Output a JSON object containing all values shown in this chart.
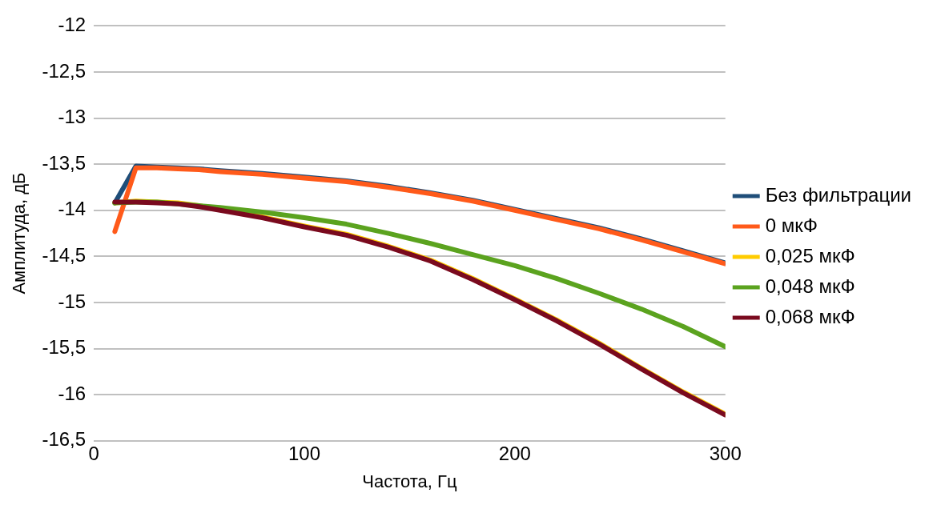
{
  "chart_data": {
    "type": "line",
    "xlabel": "Частота, Гц",
    "ylabel": "Амплитуда, дБ",
    "x": [
      10,
      20,
      30,
      40,
      50,
      60,
      80,
      100,
      120,
      140,
      160,
      180,
      200,
      220,
      240,
      260,
      280,
      300
    ],
    "xlim": [
      0,
      300
    ],
    "xticks": [
      0,
      100,
      200,
      300
    ],
    "ylim": [
      -16.5,
      -12
    ],
    "yticks": [
      {
        "value": -16.5,
        "label": "-16,5"
      },
      -16,
      {
        "value": -15.5,
        "label": "-15,5"
      },
      -15,
      {
        "value": -14.5,
        "label": "-14,5"
      },
      -14,
      {
        "value": -13.5,
        "label": "-13,5"
      },
      -13,
      {
        "value": -12.5,
        "label": "-12,5"
      },
      -12
    ],
    "grid": "y",
    "legend": "right",
    "marker": "none",
    "line_style": "solid",
    "series": [
      {
        "name": "Без фильтрации",
        "color": "#1f4e79",
        "values": [
          -13.92,
          -13.52,
          -13.53,
          -13.54,
          -13.55,
          -13.57,
          -13.6,
          -13.64,
          -13.68,
          -13.74,
          -13.81,
          -13.89,
          -13.99,
          -14.09,
          -14.19,
          -14.31,
          -14.44,
          -14.57
        ]
      },
      {
        "name": "0 мкФ",
        "color": "#ff5a1a",
        "values": [
          -14.23,
          -13.54,
          -13.54,
          -13.55,
          -13.56,
          -13.58,
          -13.61,
          -13.65,
          -13.69,
          -13.75,
          -13.82,
          -13.9,
          -14.0,
          -14.1,
          -14.2,
          -14.32,
          -14.45,
          -14.58
        ]
      },
      {
        "name": "0,025 мкФ",
        "color": "#ffcc00",
        "values": [
          -13.92,
          -13.9,
          -13.91,
          -13.92,
          -13.95,
          -13.99,
          -14.07,
          -14.17,
          -14.26,
          -14.39,
          -14.54,
          -14.74,
          -14.96,
          -15.19,
          -15.44,
          -15.71,
          -15.97,
          -16.21
        ]
      },
      {
        "name": "0,048 мкФ",
        "color": "#5ba31f",
        "values": [
          -13.92,
          -13.91,
          -13.91,
          -13.93,
          -13.95,
          -13.97,
          -14.02,
          -14.08,
          -14.15,
          -14.25,
          -14.36,
          -14.48,
          -14.6,
          -14.74,
          -14.9,
          -15.07,
          -15.26,
          -15.48
        ]
      },
      {
        "name": "0,068 мкФ",
        "color": "#7a0a1e",
        "values": [
          -13.91,
          -13.91,
          -13.92,
          -13.93,
          -13.96,
          -14.0,
          -14.08,
          -14.18,
          -14.27,
          -14.4,
          -14.55,
          -14.75,
          -14.97,
          -15.2,
          -15.45,
          -15.72,
          -15.98,
          -16.22
        ]
      }
    ]
  }
}
